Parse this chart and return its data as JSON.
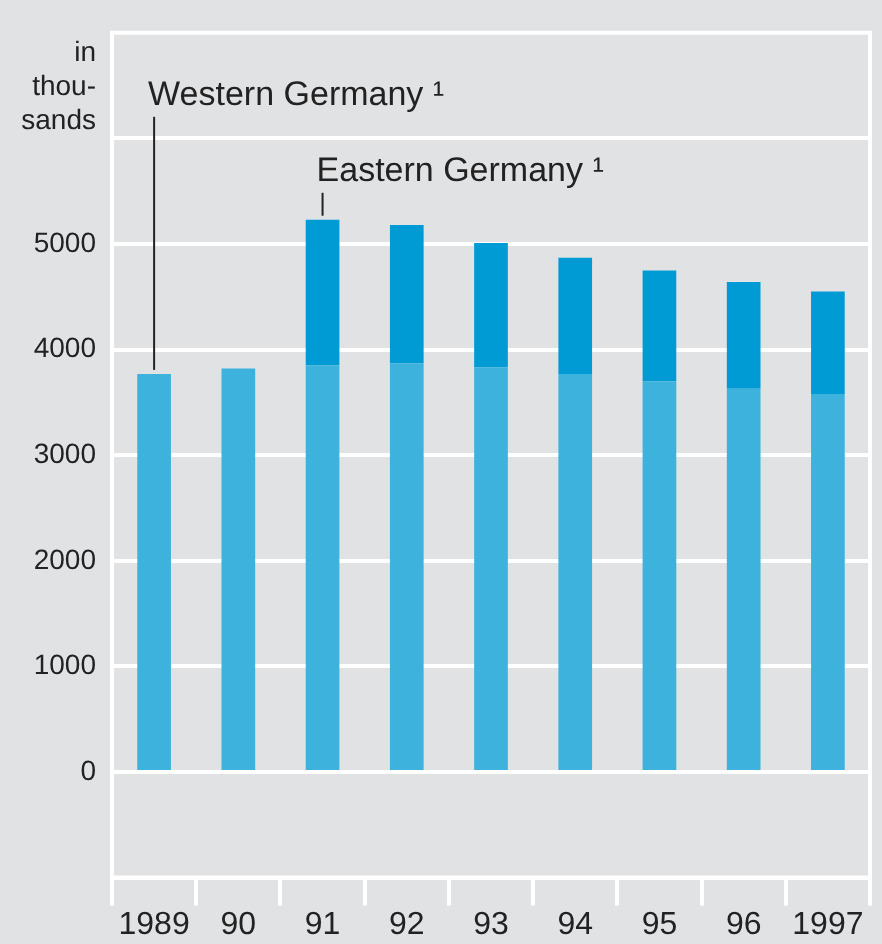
{
  "chart_data": {
    "type": "bar",
    "ylabel": "in thou- sands",
    "stacked": true,
    "categories": [
      "1989",
      "90",
      "91",
      "92",
      "93",
      "94",
      "95",
      "96",
      "1997"
    ],
    "series": [
      {
        "name": "Western Germany ¹",
        "color": "#3db2dc",
        "values": [
          3770,
          3820,
          3850,
          3870,
          3830,
          3770,
          3700,
          3630,
          3580
        ]
      },
      {
        "name": "Eastern Germany ¹",
        "color": "#009bd4",
        "values": [
          null,
          null,
          1380,
          1310,
          1180,
          1100,
          1050,
          1010,
          970
        ]
      }
    ],
    "ylim": [
      -1000,
      7000
    ],
    "yticks": [
      0,
      1000,
      2000,
      3000,
      4000,
      5000,
      {
        "value": 6000,
        "label": null
      }
    ],
    "grid": "y",
    "legend": false
  }
}
